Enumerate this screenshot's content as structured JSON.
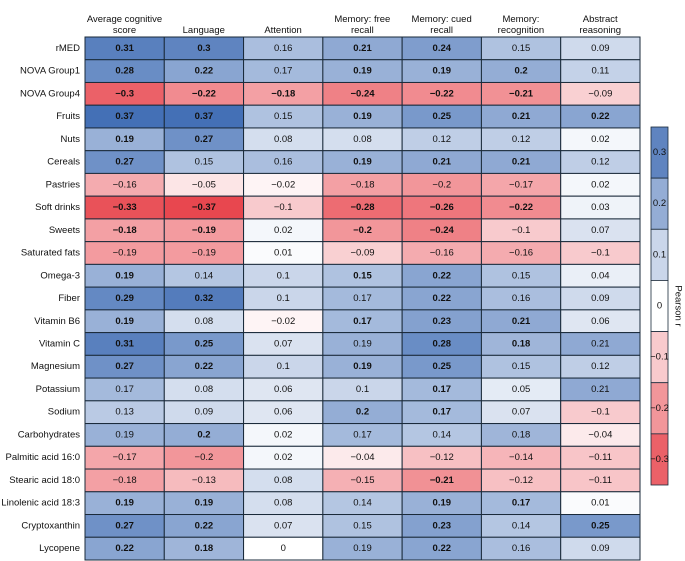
{
  "chart_data": {
    "type": "heatmap",
    "columns": [
      "Average cognitive score",
      "Language",
      "Attention",
      "Memory: free recall",
      "Memory: cued recall",
      "Memory: recognition",
      "Abstract reasoning"
    ],
    "rows": [
      "rMED",
      "NOVA Group1",
      "NOVA Group4",
      "Fruits",
      "Nuts",
      "Cereals",
      "Pastries",
      "Soft drinks",
      "Sweets",
      "Saturated fats",
      "Omega-3",
      "Fiber",
      "Vitamin B6",
      "Vitamin C",
      "Magnesium",
      "Potassium",
      "Sodium",
      "Carbohydrates",
      "Palmitic acid 16:0",
      "Stearic acid 18:0",
      "Linolenic acid 18:3",
      "Cryptoxanthin",
      "Lycopene"
    ],
    "values": [
      [
        0.31,
        0.3,
        0.16,
        0.21,
        0.24,
        0.15,
        0.09
      ],
      [
        0.28,
        0.22,
        0.17,
        0.19,
        0.19,
        0.2,
        0.11
      ],
      [
        -0.3,
        -0.22,
        -0.18,
        -0.24,
        -0.22,
        -0.21,
        -0.09
      ],
      [
        0.37,
        0.37,
        0.15,
        0.19,
        0.25,
        0.21,
        0.22
      ],
      [
        0.19,
        0.27,
        0.08,
        0.08,
        0.12,
        0.12,
        0.02
      ],
      [
        0.27,
        0.15,
        0.16,
        0.19,
        0.21,
        0.21,
        0.12
      ],
      [
        -0.16,
        -0.05,
        -0.02,
        -0.18,
        -0.2,
        -0.17,
        0.02
      ],
      [
        -0.33,
        -0.37,
        -0.1,
        -0.28,
        -0.26,
        -0.22,
        0.03
      ],
      [
        -0.18,
        -0.19,
        0.02,
        -0.2,
        -0.24,
        -0.1,
        0.07
      ],
      [
        -0.19,
        -0.19,
        0.01,
        -0.09,
        -0.16,
        -0.16,
        -0.1
      ],
      [
        0.19,
        0.14,
        0.1,
        0.15,
        0.22,
        0.15,
        0.04
      ],
      [
        0.29,
        0.32,
        0.1,
        0.17,
        0.22,
        0.16,
        0.09
      ],
      [
        0.19,
        0.08,
        -0.02,
        0.17,
        0.23,
        0.21,
        0.06
      ],
      [
        0.31,
        0.25,
        0.07,
        0.19,
        0.28,
        0.18,
        0.21
      ],
      [
        0.27,
        0.22,
        0.1,
        0.19,
        0.25,
        0.15,
        0.12
      ],
      [
        0.17,
        0.08,
        0.06,
        0.1,
        0.17,
        0.05,
        0.21
      ],
      [
        0.13,
        0.09,
        0.06,
        0.2,
        0.17,
        0.07,
        -0.1
      ],
      [
        0.19,
        0.2,
        0.02,
        0.17,
        0.14,
        0.18,
        -0.04
      ],
      [
        -0.17,
        -0.2,
        0.02,
        -0.04,
        -0.12,
        -0.14,
        -0.11
      ],
      [
        -0.18,
        -0.13,
        0.08,
        -0.15,
        -0.21,
        -0.12,
        -0.11
      ],
      [
        0.19,
        0.19,
        0.08,
        0.14,
        0.19,
        0.17,
        0.01
      ],
      [
        0.27,
        0.22,
        0.07,
        0.15,
        0.23,
        0.14,
        0.25
      ],
      [
        0.22,
        0.18,
        0,
        0.19,
        0.22,
        0.16,
        0.09
      ]
    ],
    "value_labels": [
      [
        "0.31",
        "0.3",
        "0.16",
        "0.21",
        "0.24",
        "0.15",
        "0.09"
      ],
      [
        "0.28",
        "0.22",
        "0.17",
        "0.19",
        "0.19",
        "0.2",
        "0.11"
      ],
      [
        "−0.3",
        "−0.22",
        "−0.18",
        "−0.24",
        "−0.22",
        "−0.21",
        "−0.09"
      ],
      [
        "0.37",
        "0.37",
        "0.15",
        "0.19",
        "0.25",
        "0.21",
        "0.22"
      ],
      [
        "0.19",
        "0.27",
        "0.08",
        "0.08",
        "0.12",
        "0.12",
        "0.02"
      ],
      [
        "0.27",
        "0.15",
        "0.16",
        "0.19",
        "0.21",
        "0.21",
        "0.12"
      ],
      [
        "−0.16",
        "−0.05",
        "−0.02",
        "−0.18",
        "−0.2",
        "−0.17",
        "0.02"
      ],
      [
        "−0.33",
        "−0.37",
        "−0.1",
        "−0.28",
        "−0.26",
        "−0.22",
        "0.03"
      ],
      [
        "−0.18",
        "−0.19",
        "0.02",
        "−0.2",
        "−0.24",
        "−0.1",
        "0.07"
      ],
      [
        "−0.19",
        "−0.19",
        "0.01",
        "−0.09",
        "−0.16",
        "−0.16",
        "−0.1"
      ],
      [
        "0.19",
        "0.14",
        "0.1",
        "0.15",
        "0.22",
        "0.15",
        "0.04"
      ],
      [
        "0.29",
        "0.32",
        "0.1",
        "0.17",
        "0.22",
        "0.16",
        "0.09"
      ],
      [
        "0.19",
        "0.08",
        "−0.02",
        "0.17",
        "0.23",
        "0.21",
        "0.06"
      ],
      [
        "0.31",
        "0.25",
        "0.07",
        "0.19",
        "0.28",
        "0.18",
        "0.21"
      ],
      [
        "0.27",
        "0.22",
        "0.1",
        "0.19",
        "0.25",
        "0.15",
        "0.12"
      ],
      [
        "0.17",
        "0.08",
        "0.06",
        "0.1",
        "0.17",
        "0.05",
        "0.21"
      ],
      [
        "0.13",
        "0.09",
        "0.06",
        "0.2",
        "0.17",
        "0.07",
        "−0.1"
      ],
      [
        "0.19",
        "0.2",
        "0.02",
        "0.17",
        "0.14",
        "0.18",
        "−0.04"
      ],
      [
        "−0.17",
        "−0.2",
        "0.02",
        "−0.04",
        "−0.12",
        "−0.14",
        "−0.11"
      ],
      [
        "−0.18",
        "−0.13",
        "0.08",
        "−0.15",
        "−0.21",
        "−0.12",
        "−0.11"
      ],
      [
        "0.19",
        "0.19",
        "0.08",
        "0.14",
        "0.19",
        "0.17",
        "0.01"
      ],
      [
        "0.27",
        "0.22",
        "0.07",
        "0.15",
        "0.23",
        "0.14",
        "0.25"
      ],
      [
        "0.22",
        "0.18",
        "0",
        "0.19",
        "0.22",
        "0.16",
        "0.09"
      ]
    ],
    "bold": [
      [
        1,
        1,
        0,
        1,
        1,
        0,
        0
      ],
      [
        1,
        1,
        0,
        1,
        1,
        1,
        0
      ],
      [
        1,
        1,
        1,
        1,
        1,
        1,
        0
      ],
      [
        1,
        1,
        0,
        1,
        1,
        1,
        1
      ],
      [
        1,
        1,
        0,
        0,
        0,
        0,
        0
      ],
      [
        1,
        0,
        0,
        1,
        1,
        1,
        0
      ],
      [
        0,
        0,
        0,
        0,
        0,
        0,
        0
      ],
      [
        1,
        1,
        0,
        1,
        1,
        1,
        0
      ],
      [
        1,
        1,
        0,
        1,
        1,
        0,
        0
      ],
      [
        0,
        0,
        0,
        0,
        0,
        0,
        0
      ],
      [
        1,
        0,
        0,
        1,
        1,
        0,
        0
      ],
      [
        1,
        1,
        0,
        0,
        1,
        0,
        0
      ],
      [
        1,
        0,
        0,
        1,
        1,
        1,
        0
      ],
      [
        1,
        1,
        0,
        0,
        1,
        1,
        0
      ],
      [
        1,
        1,
        0,
        1,
        1,
        0,
        0
      ],
      [
        0,
        0,
        0,
        0,
        1,
        0,
        0
      ],
      [
        0,
        0,
        0,
        1,
        1,
        0,
        0
      ],
      [
        0,
        1,
        0,
        0,
        0,
        0,
        0
      ],
      [
        0,
        0,
        0,
        0,
        0,
        0,
        0
      ],
      [
        0,
        0,
        0,
        0,
        1,
        0,
        0
      ],
      [
        1,
        1,
        0,
        0,
        1,
        1,
        0
      ],
      [
        1,
        1,
        0,
        0,
        1,
        0,
        1
      ],
      [
        1,
        1,
        0,
        0,
        1,
        0,
        0
      ]
    ],
    "colors": {
      "low": "#e8474f",
      "mid": "#ffffff",
      "high": "#4470b6"
    },
    "colorbar": {
      "label": "Pearson r",
      "clim": [
        -0.35,
        0.35
      ],
      "ticks": [
        0.3,
        0.2,
        0.1,
        0,
        {
          "value": -0.1,
          "label": "−0.1"
        },
        {
          "value": -0.2,
          "label": "−0.2"
        },
        {
          "value": -0.3,
          "label": "−0.3"
        }
      ]
    }
  }
}
